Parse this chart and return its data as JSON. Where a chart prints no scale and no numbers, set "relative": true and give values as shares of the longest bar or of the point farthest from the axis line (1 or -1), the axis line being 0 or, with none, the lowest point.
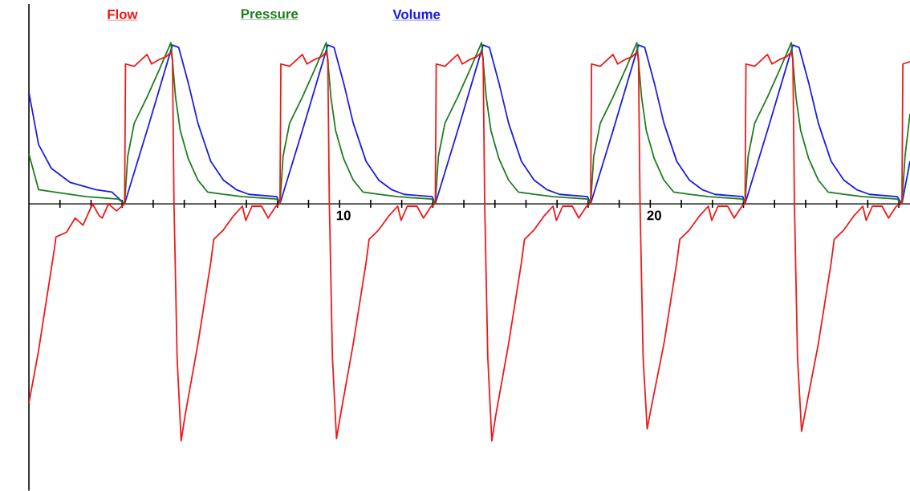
{
  "chart_data": {
    "type": "line",
    "relative": true,
    "marker": "none",
    "legend": "top left",
    "xlim": [
      0,
      28.36
    ],
    "xticks": [
      {
        "value": 1,
        "label": null
      },
      {
        "value": 2,
        "label": null
      },
      {
        "value": 3,
        "label": null
      },
      {
        "value": 4,
        "label": null
      },
      {
        "value": 5,
        "label": null
      },
      {
        "value": 6,
        "label": null
      },
      {
        "value": 7,
        "label": null
      },
      {
        "value": 8,
        "label": null
      },
      {
        "value": 9,
        "label": null
      },
      10,
      {
        "value": 11,
        "label": null
      },
      {
        "value": 12,
        "label": null
      },
      {
        "value": 13,
        "label": null
      },
      {
        "value": 14,
        "label": null
      },
      {
        "value": 15,
        "label": null
      },
      {
        "value": 16,
        "label": null
      },
      {
        "value": 17,
        "label": null
      },
      {
        "value": 18,
        "label": null
      },
      {
        "value": 19,
        "label": null
      },
      20,
      {
        "value": 21,
        "label": null
      },
      {
        "value": 22,
        "label": null
      },
      {
        "value": 23,
        "label": null
      },
      {
        "value": 24,
        "label": null
      },
      {
        "value": 25,
        "label": null
      },
      {
        "value": 26,
        "label": null
      },
      {
        "value": 27,
        "label": null
      },
      {
        "value": 28,
        "label": null
      }
    ],
    "series": [
      {
        "name": "Flow",
        "color": "#f01818",
        "x": [
          0,
          0.31,
          0.82,
          0.87,
          1.21,
          1.49,
          1.74,
          2.05,
          2.26,
          2.36,
          2.56,
          2.82,
          3.08,
          3.11,
          3.39,
          3.8,
          3.95,
          4.21,
          4.41,
          4.57,
          4.62,
          4.67,
          4.77,
          4.9,
          5.03,
          5.44,
          5.85,
          5.95,
          6.26,
          6.59,
          6.87,
          6.98,
          7.18,
          7.49,
          7.7,
          7.95,
          8.08,
          8.11,
          8.39,
          8.8,
          8.95,
          9.21,
          9.41,
          9.57,
          9.62,
          9.67,
          9.77,
          9.9,
          10.03,
          10.44,
          10.85,
          10.95,
          11.26,
          11.59,
          11.87,
          11.98,
          12.18,
          12.49,
          12.7,
          12.95,
          13.08,
          13.11,
          13.39,
          13.8,
          13.95,
          14.21,
          14.41,
          14.57,
          14.62,
          14.67,
          14.77,
          14.9,
          15.03,
          15.44,
          15.85,
          15.95,
          16.26,
          16.59,
          16.87,
          16.98,
          17.18,
          17.49,
          17.7,
          17.95,
          18.08,
          18.11,
          18.39,
          18.8,
          18.95,
          19.21,
          19.41,
          19.57,
          19.62,
          19.67,
          19.77,
          19.9,
          20.03,
          20.44,
          20.85,
          20.95,
          21.26,
          21.59,
          21.87,
          21.98,
          22.18,
          22.49,
          22.7,
          22.95,
          23.05,
          23.08,
          23.36,
          23.77,
          23.92,
          24.18,
          24.38,
          24.54,
          24.59,
          24.64,
          24.74,
          24.87,
          25.0,
          25.41,
          25.82,
          25.92,
          26.23,
          26.56,
          26.84,
          26.95,
          27.15,
          27.46,
          27.67,
          27.92,
          28.1,
          28.13,
          28.36
        ],
        "values": [
          -0.84,
          -0.62,
          -0.19,
          -0.14,
          -0.12,
          -0.06,
          -0.09,
          0,
          -0.05,
          -0.06,
          0,
          -0.03,
          0,
          0.59,
          0.58,
          0.63,
          0.59,
          0.61,
          0.62,
          0.64,
          0.61,
          0,
          -0.65,
          -1,
          -0.89,
          -0.59,
          -0.25,
          -0.15,
          -0.11,
          -0.05,
          -0.01,
          -0.07,
          -0.01,
          -0.01,
          -0.06,
          -0.01,
          0,
          0.59,
          0.58,
          0.63,
          0.59,
          0.61,
          0.62,
          0.64,
          0.61,
          0,
          -0.65,
          -0.99,
          -0.89,
          -0.59,
          -0.25,
          -0.15,
          -0.11,
          -0.05,
          -0.01,
          -0.07,
          -0.01,
          -0.01,
          -0.06,
          -0.01,
          0,
          0.59,
          0.58,
          0.63,
          0.59,
          0.61,
          0.62,
          0.64,
          0.61,
          0,
          -0.65,
          -1,
          -0.89,
          -0.59,
          -0.25,
          -0.15,
          -0.11,
          -0.05,
          -0.01,
          -0.07,
          -0.01,
          -0.01,
          -0.06,
          -0.01,
          0,
          0.59,
          0.58,
          0.63,
          0.59,
          0.61,
          0.62,
          0.64,
          0.61,
          0,
          -0.65,
          -0.95,
          -0.86,
          -0.59,
          -0.25,
          -0.15,
          -0.11,
          -0.05,
          -0.01,
          -0.07,
          -0.01,
          -0.01,
          -0.06,
          -0.01,
          0,
          0.59,
          0.58,
          0.63,
          0.59,
          0.61,
          0.62,
          0.64,
          0.61,
          0,
          -0.65,
          -0.96,
          -0.87,
          -0.59,
          -0.25,
          -0.15,
          -0.11,
          -0.05,
          -0.01,
          -0.07,
          -0.01,
          -0.01,
          -0.06,
          -0.01,
          0,
          0.59,
          0.6
        ]
      },
      {
        "name": "Pressure",
        "color": "#1e7d1e",
        "x": [
          0,
          0.31,
          0.82,
          1.85,
          2.87,
          3.08,
          3.18,
          3.39,
          3.8,
          4.21,
          4.57,
          4.72,
          4.87,
          5.13,
          5.44,
          5.75,
          6.26,
          6.88,
          7.98,
          8.08,
          8.18,
          8.39,
          8.8,
          9.21,
          9.57,
          9.72,
          9.87,
          10.13,
          10.44,
          10.75,
          11.26,
          11.88,
          12.98,
          13.08,
          13.18,
          13.39,
          13.8,
          14.21,
          14.57,
          14.72,
          14.87,
          15.13,
          15.44,
          15.75,
          16.26,
          16.88,
          17.98,
          18.08,
          18.18,
          18.39,
          18.8,
          19.21,
          19.57,
          19.72,
          19.87,
          20.13,
          20.44,
          20.75,
          21.26,
          21.88,
          22.98,
          23.05,
          23.15,
          23.36,
          23.77,
          24.18,
          24.54,
          24.69,
          24.84,
          25.1,
          25.41,
          25.72,
          26.23,
          26.85,
          27.95,
          28.1,
          28.2,
          28.36
        ],
        "values": [
          0.21,
          0.06,
          0.05,
          0.03,
          0.02,
          0,
          0.2,
          0.34,
          0.45,
          0.57,
          0.68,
          0.45,
          0.31,
          0.19,
          0.1,
          0.05,
          0.04,
          0.03,
          0.02,
          0,
          0.2,
          0.34,
          0.45,
          0.57,
          0.68,
          0.45,
          0.31,
          0.19,
          0.1,
          0.05,
          0.04,
          0.03,
          0.02,
          0,
          0.2,
          0.34,
          0.45,
          0.57,
          0.68,
          0.45,
          0.31,
          0.19,
          0.1,
          0.05,
          0.04,
          0.03,
          0.02,
          0,
          0.2,
          0.34,
          0.45,
          0.57,
          0.68,
          0.45,
          0.31,
          0.19,
          0.1,
          0.05,
          0.04,
          0.03,
          0.02,
          0,
          0.2,
          0.34,
          0.45,
          0.57,
          0.68,
          0.45,
          0.31,
          0.19,
          0.1,
          0.05,
          0.04,
          0.03,
          0.02,
          0,
          0.2,
          0.38
        ]
      },
      {
        "name": "Volume",
        "color": "#1c1ce0",
        "x": [
          0,
          0.31,
          0.72,
          1.33,
          2.15,
          2.67,
          3.08,
          3.85,
          4.62,
          4.82,
          5.13,
          5.44,
          5.85,
          6.26,
          6.67,
          7.08,
          7.98,
          8.08,
          8.85,
          9.62,
          9.82,
          10.13,
          10.44,
          10.85,
          11.26,
          11.67,
          12.08,
          12.98,
          13.08,
          13.85,
          14.62,
          14.82,
          15.13,
          15.44,
          15.85,
          16.26,
          16.67,
          17.08,
          17.98,
          18.08,
          18.85,
          19.62,
          19.82,
          20.13,
          20.44,
          20.85,
          21.26,
          21.67,
          22.08,
          22.98,
          23.05,
          23.82,
          24.59,
          24.79,
          25.1,
          25.41,
          25.82,
          26.23,
          26.64,
          27.05,
          27.95,
          28.1,
          28.36
        ],
        "values": [
          0.47,
          0.25,
          0.15,
          0.09,
          0.06,
          0.05,
          0,
          0.33,
          0.67,
          0.66,
          0.51,
          0.34,
          0.18,
          0.1,
          0.06,
          0.04,
          0.03,
          0,
          0.33,
          0.67,
          0.66,
          0.51,
          0.34,
          0.18,
          0.1,
          0.06,
          0.04,
          0.03,
          0,
          0.33,
          0.67,
          0.66,
          0.51,
          0.34,
          0.18,
          0.1,
          0.06,
          0.04,
          0.03,
          0,
          0.33,
          0.67,
          0.66,
          0.51,
          0.34,
          0.18,
          0.1,
          0.06,
          0.04,
          0.03,
          0,
          0.33,
          0.67,
          0.66,
          0.51,
          0.34,
          0.18,
          0.1,
          0.06,
          0.04,
          0.03,
          0,
          0.18
        ]
      }
    ]
  }
}
